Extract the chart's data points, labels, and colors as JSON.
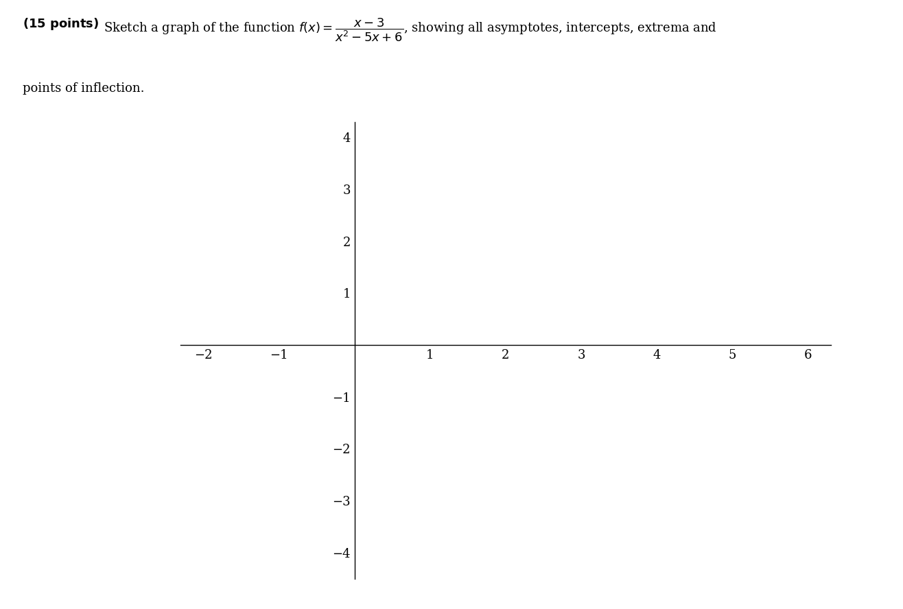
{
  "xlim": [
    -2.3,
    6.3
  ],
  "ylim": [
    -4.5,
    4.3
  ],
  "xticks": [
    -2,
    -1,
    1,
    2,
    3,
    4,
    5,
    6
  ],
  "yticks": [
    -4,
    -3,
    -2,
    -1,
    1,
    2,
    3,
    4
  ],
  "xtick_labels": [
    "−2",
    "−1",
    "1",
    "2",
    "3",
    "4",
    "5",
    "6"
  ],
  "ytick_labels": [
    "−4",
    "−3",
    "−2",
    "−1",
    "1",
    "2",
    "3",
    "4"
  ],
  "background_color": "#ffffff",
  "font_size_ticks": 13,
  "font_size_title": 13,
  "figure_width": 13.16,
  "figure_height": 8.88,
  "dpi": 100,
  "header_line1": "(15 points) Sketch a graph of the function ",
  "header_bold": "(15 points)",
  "header_rest": "  Sketch a graph of the function ",
  "header_line2": "points of inflection."
}
